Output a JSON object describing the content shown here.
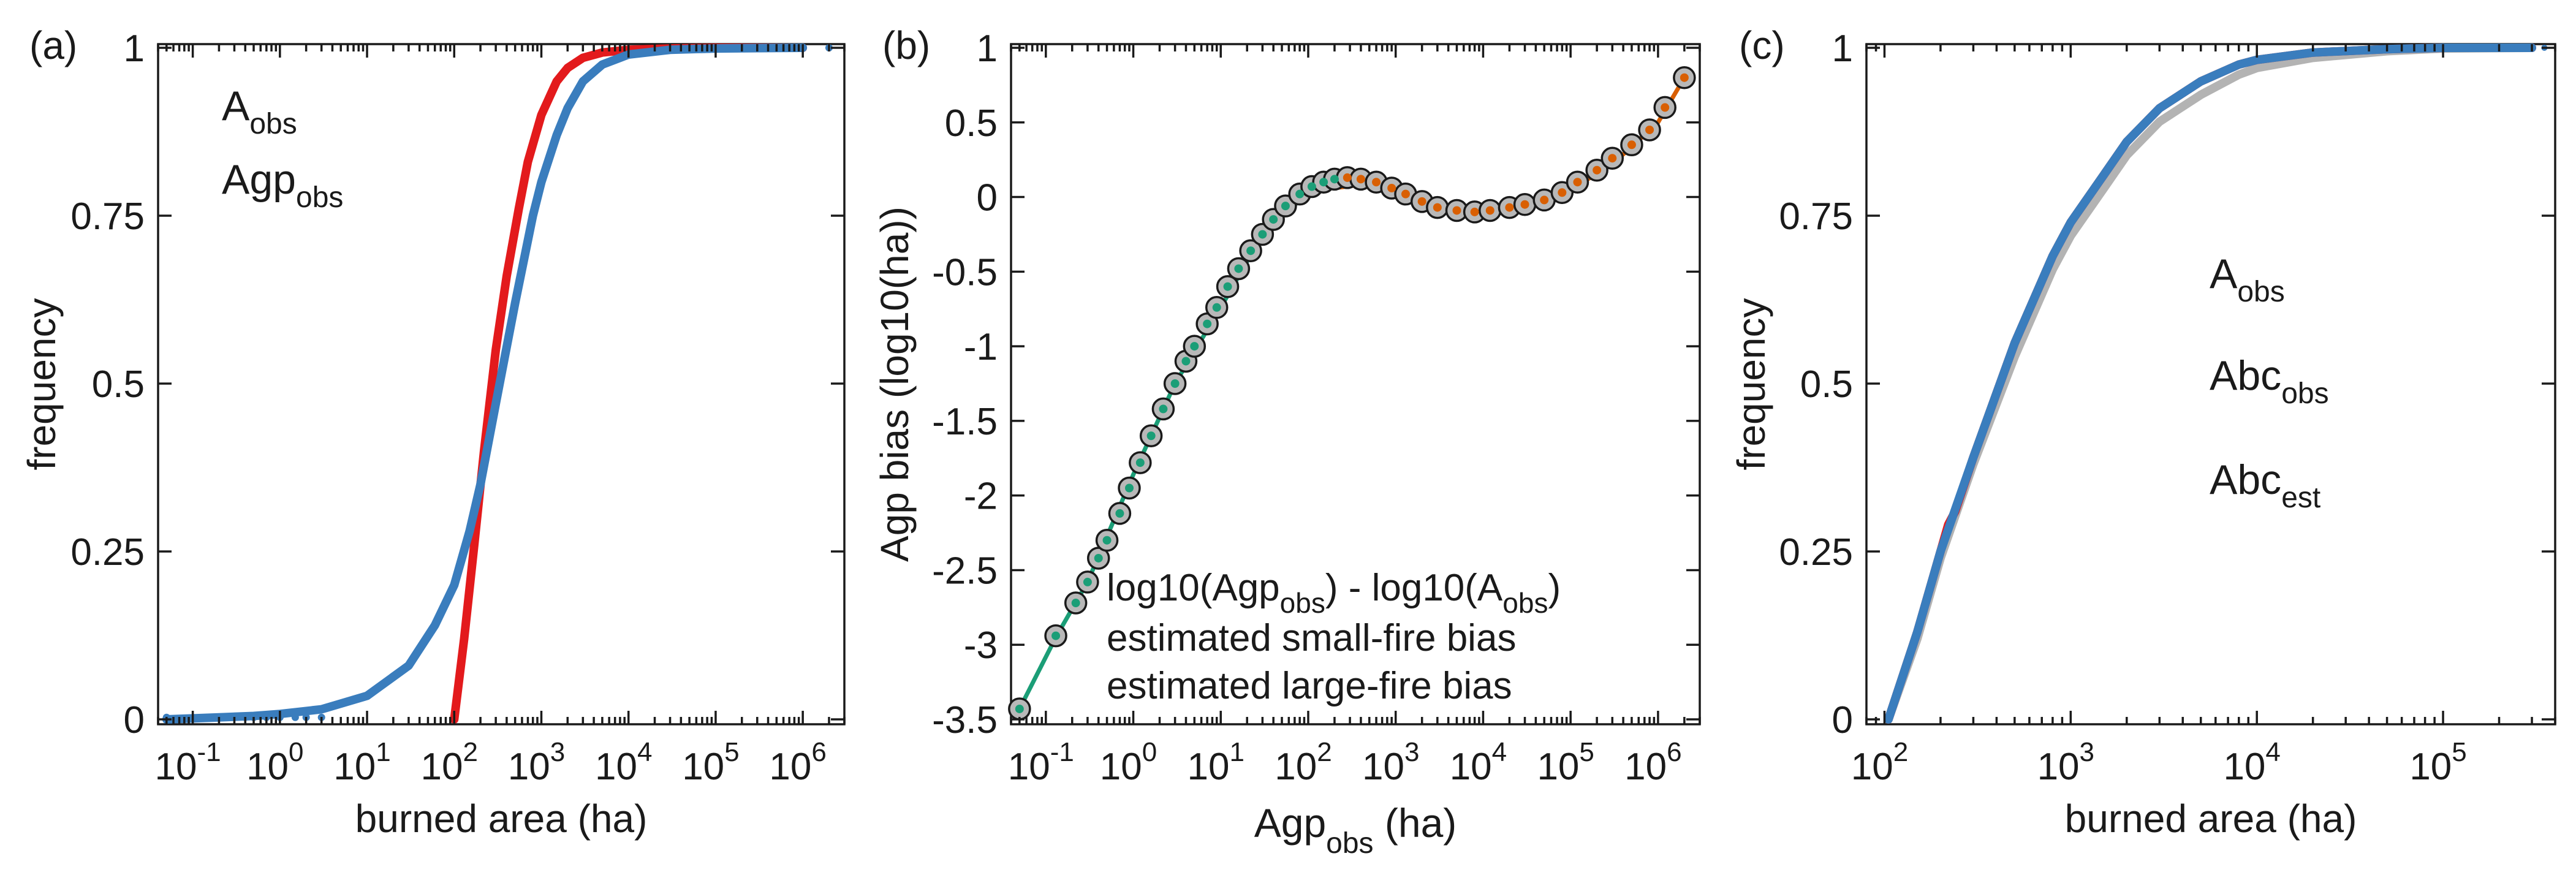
{
  "colors": {
    "red": "#e31a1c",
    "blue": "#3a7dbd",
    "gray": "#b3b3b3",
    "green": "#1b9e77",
    "orange": "#d95f02"
  },
  "chart_data": [
    {
      "panel_label": "(a)",
      "type": "line",
      "xlabel": "burned area (ha)",
      "ylabel": "frequency",
      "xscale": "log",
      "xlim": [
        0.04,
        3000000
      ],
      "ylim": [
        0,
        1
      ],
      "x_ticks": [
        0.1,
        1,
        10,
        100,
        1000,
        10000,
        100000,
        1000000
      ],
      "x_tick_labels": [
        {
          "base": "10",
          "exp": "-1"
        },
        {
          "base": "10",
          "exp": "0"
        },
        {
          "base": "10",
          "exp": "1"
        },
        {
          "base": "10",
          "exp": "2"
        },
        {
          "base": "10",
          "exp": "3"
        },
        {
          "base": "10",
          "exp": "4"
        },
        {
          "base": "10",
          "exp": "5"
        },
        {
          "base": "10",
          "exp": "6"
        }
      ],
      "y_ticks": [
        0,
        0.25,
        0.5,
        0.75,
        1
      ],
      "y_tick_labels": [
        "0",
        "0.25",
        "0.5",
        "0.75",
        "1"
      ],
      "legend": [
        {
          "base": "A",
          "sub": "obs",
          "color": "#e31a1c"
        },
        {
          "base": "Agp",
          "sub": "obs",
          "color": "#3a7dbd"
        }
      ],
      "series": [
        {
          "color": "#e31a1c",
          "x": [
            100,
            130,
            170,
            220,
            300,
            400,
            550,
            700,
            1000,
            1500,
            2000,
            3000,
            5000,
            10000,
            30000,
            100000,
            1000000
          ],
          "y": [
            0.0,
            0.12,
            0.26,
            0.4,
            0.55,
            0.66,
            0.76,
            0.83,
            0.9,
            0.95,
            0.97,
            0.985,
            0.993,
            0.997,
            0.999,
            1.0,
            1.0
          ]
        },
        {
          "color": "#3a7dbd",
          "x": [
            0.05,
            0.2,
            0.5,
            1,
            3,
            10,
            30,
            60,
            100,
            150,
            200,
            300,
            500,
            800,
            1000,
            1500,
            2000,
            3000,
            5000,
            10000,
            30000,
            100000,
            1000000
          ],
          "y": [
            0.0,
            0.003,
            0.005,
            0.008,
            0.015,
            0.035,
            0.08,
            0.14,
            0.2,
            0.28,
            0.35,
            0.47,
            0.62,
            0.75,
            0.8,
            0.87,
            0.91,
            0.95,
            0.975,
            0.99,
            0.997,
            0.999,
            1.0
          ]
        }
      ]
    },
    {
      "panel_label": "(b)",
      "type": "scatter",
      "xlabel": {
        "base": "Agp",
        "sub": "obs",
        "suffix": " (ha)"
      },
      "ylabel": "Agp bias (log10(ha))",
      "xscale": "log",
      "xlim": [
        0.04,
        3000000
      ],
      "ylim": [
        -3.5,
        1
      ],
      "x_ticks": [
        0.1,
        1,
        10,
        100,
        1000,
        10000,
        100000,
        1000000
      ],
      "x_tick_labels": [
        {
          "base": "10",
          "exp": "-1"
        },
        {
          "base": "10",
          "exp": "0"
        },
        {
          "base": "10",
          "exp": "1"
        },
        {
          "base": "10",
          "exp": "2"
        },
        {
          "base": "10",
          "exp": "3"
        },
        {
          "base": "10",
          "exp": "4"
        },
        {
          "base": "10",
          "exp": "5"
        },
        {
          "base": "10",
          "exp": "6"
        }
      ],
      "y_ticks": [
        -3.5,
        -3,
        -2.5,
        -2,
        -1.5,
        -1,
        -0.5,
        0,
        0.5,
        1
      ],
      "y_tick_labels": [
        "-3.5",
        "-3",
        "-2.5",
        "-2",
        "-1.5",
        "-1",
        "-0.5",
        "0",
        "0.5",
        "1"
      ],
      "legend": [
        {
          "text": "log10(Agp",
          "sub1": "obs",
          "mid": ") - log10(A",
          "sub2": "obs",
          "end": ")",
          "color": "#b3b3b3"
        },
        {
          "text": "estimated small-fire bias",
          "color": "#1b9e77"
        },
        {
          "text": "estimated large-fire bias",
          "color": "#d95f02"
        }
      ],
      "points": {
        "x": [
          0.05,
          0.13,
          0.22,
          0.3,
          0.4,
          0.5,
          0.7,
          0.9,
          1.2,
          1.6,
          2.2,
          3,
          4,
          5,
          7,
          9,
          12,
          16,
          22,
          30,
          40,
          55,
          80,
          110,
          150,
          200,
          280,
          400,
          600,
          900,
          1300,
          2000,
          3000,
          5000,
          8000,
          12000,
          20000,
          30000,
          50000,
          80000,
          120000,
          200000,
          300000,
          500000,
          800000,
          1200000,
          2000000
        ],
        "y": [
          -3.43,
          -2.94,
          -2.72,
          -2.58,
          -2.42,
          -2.3,
          -2.12,
          -1.95,
          -1.78,
          -1.6,
          -1.42,
          -1.25,
          -1.1,
          -1.0,
          -0.85,
          -0.74,
          -0.6,
          -0.48,
          -0.36,
          -0.25,
          -0.15,
          -0.06,
          0.02,
          0.07,
          0.1,
          0.12,
          0.13,
          0.12,
          0.1,
          0.06,
          0.02,
          -0.03,
          -0.07,
          -0.09,
          -0.1,
          -0.09,
          -0.07,
          -0.05,
          -0.02,
          0.03,
          0.1,
          0.18,
          0.26,
          0.35,
          0.45,
          0.6,
          0.8
        ]
      },
      "small_fire_fit": {
        "x": [
          0.05,
          0.13,
          0.3,
          1,
          3,
          10,
          30,
          100,
          200,
          400
        ],
        "y": [
          -3.43,
          -2.95,
          -2.58,
          -1.86,
          -1.25,
          -0.74,
          -0.25,
          0.03,
          0.11,
          0.12
        ]
      },
      "large_fire_fit": {
        "x": [
          200,
          500,
          1000,
          3000,
          10000,
          30000,
          100000,
          300000,
          1000000,
          2000000
        ],
        "y": [
          0.06,
          0.09,
          0.05,
          -0.05,
          -0.1,
          -0.06,
          0.05,
          0.22,
          0.5,
          0.8
        ]
      }
    },
    {
      "panel_label": "(c)",
      "type": "line",
      "xlabel": "burned area (ha)",
      "ylabel": "frequency",
      "xscale": "log",
      "xlim": [
        80,
        400000
      ],
      "ylim": [
        0,
        1
      ],
      "x_ticks": [
        100,
        1000,
        10000,
        100000
      ],
      "x_tick_labels": [
        {
          "base": "10",
          "exp": "2"
        },
        {
          "base": "10",
          "exp": "3"
        },
        {
          "base": "10",
          "exp": "4"
        },
        {
          "base": "10",
          "exp": "5"
        }
      ],
      "y_ticks": [
        0,
        0.25,
        0.5,
        0.75,
        1
      ],
      "y_tick_labels": [
        "0",
        "0.25",
        "0.5",
        "0.75",
        "1"
      ],
      "legend": [
        {
          "base": "A",
          "sub": "obs",
          "color": "#e31a1c"
        },
        {
          "base": "Abc",
          "sub": "obs",
          "color": "#3a7dbd"
        },
        {
          "base": "Abc",
          "sub": "est",
          "color": "#b3b3b3"
        }
      ],
      "series": [
        {
          "color": "#b3b3b3",
          "x": [
            105,
            150,
            200,
            300,
            500,
            800,
            1000,
            1500,
            2000,
            3000,
            5000,
            8000,
            10000,
            20000,
            50000,
            100000,
            300000
          ],
          "y": [
            0.0,
            0.12,
            0.24,
            0.38,
            0.54,
            0.67,
            0.72,
            0.79,
            0.84,
            0.89,
            0.93,
            0.96,
            0.97,
            0.985,
            0.995,
            0.999,
            1.0
          ]
        },
        {
          "color": "#e31a1c",
          "x": [
            105,
            150,
            200,
            220,
            240,
            300,
            500,
            800,
            1000,
            1500,
            2000,
            3000,
            5000,
            8000,
            10000,
            20000,
            50000,
            100000,
            300000
          ],
          "y": [
            0.0,
            0.13,
            0.25,
            0.29,
            0.31,
            0.39,
            0.56,
            0.69,
            0.74,
            0.81,
            0.86,
            0.91,
            0.95,
            0.975,
            0.982,
            0.993,
            0.998,
            1.0,
            1.0
          ]
        },
        {
          "color": "#3a7dbd",
          "x": [
            105,
            150,
            200,
            300,
            500,
            800,
            1000,
            1500,
            2000,
            3000,
            5000,
            8000,
            10000,
            20000,
            50000,
            100000,
            300000
          ],
          "y": [
            0.0,
            0.13,
            0.25,
            0.39,
            0.56,
            0.69,
            0.74,
            0.81,
            0.86,
            0.91,
            0.95,
            0.975,
            0.982,
            0.993,
            0.998,
            1.0,
            1.0
          ]
        }
      ]
    }
  ]
}
